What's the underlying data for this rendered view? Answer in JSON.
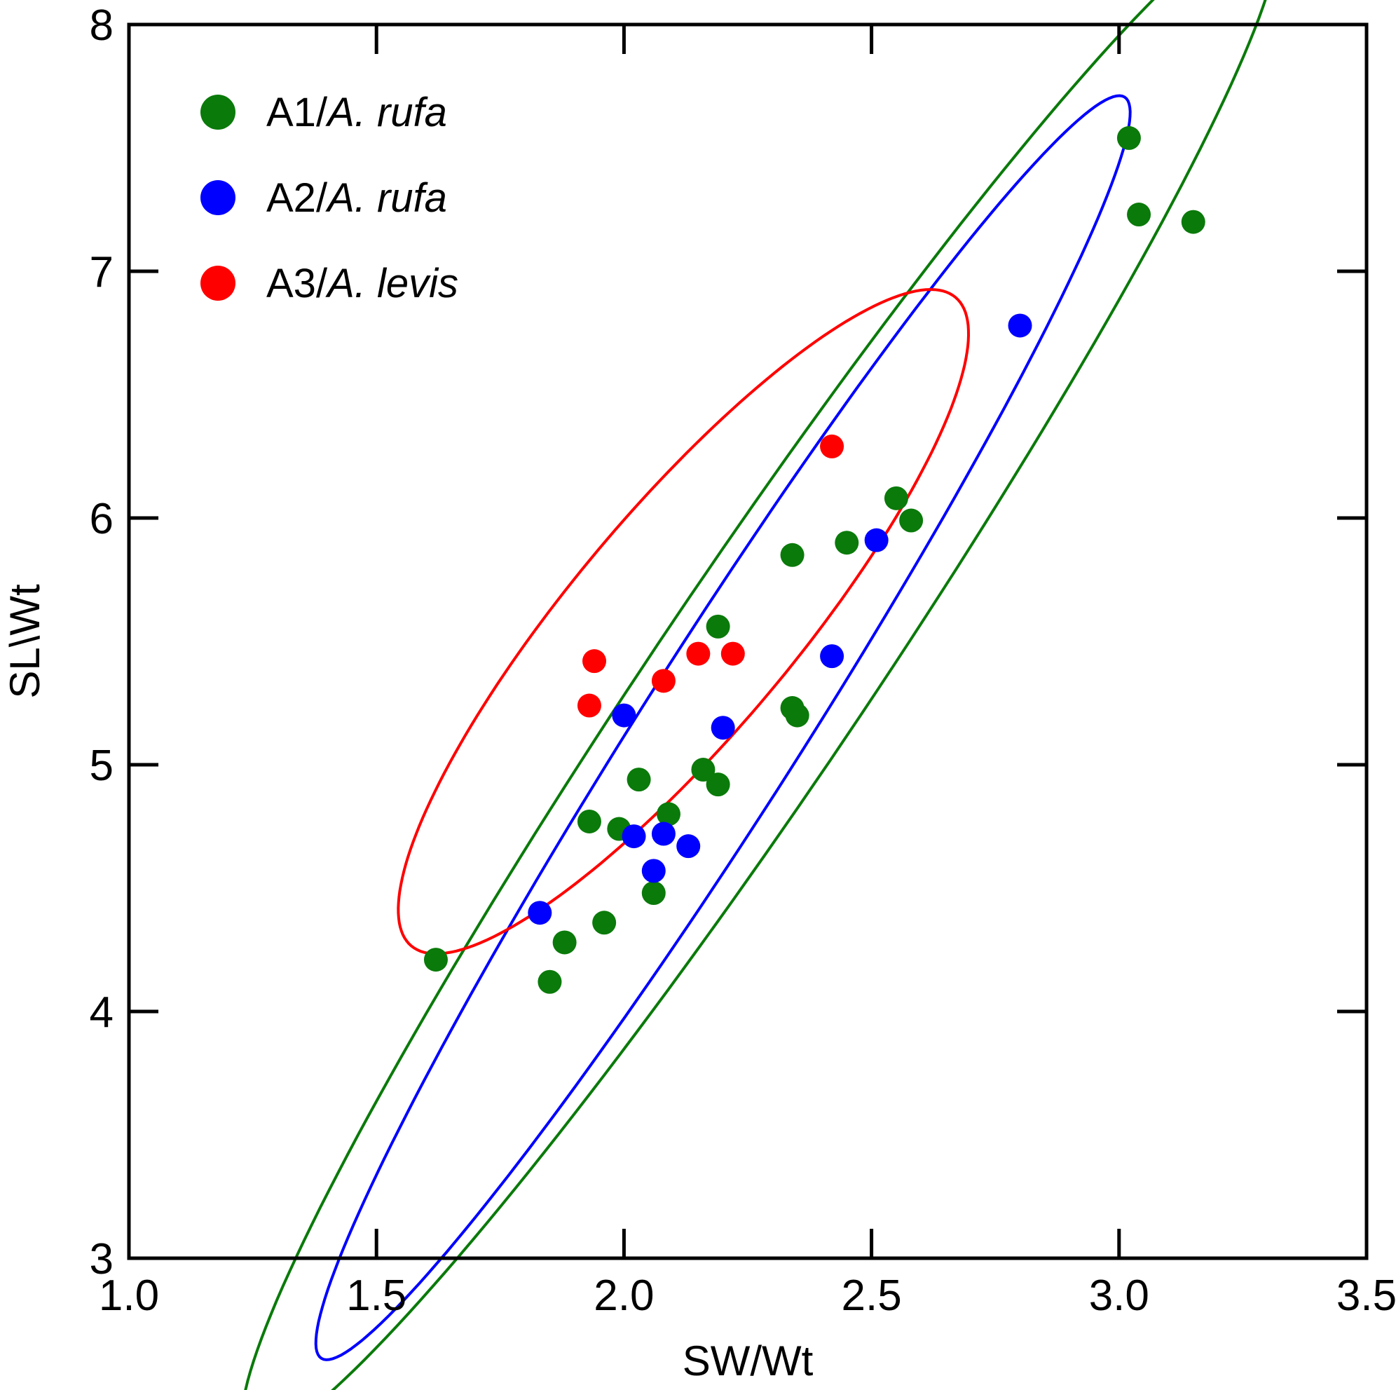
{
  "chart_data": {
    "type": "scatter",
    "xlabel": "SW/Wt",
    "ylabel": "SL\\Wt",
    "xlim": [
      1.0,
      3.5
    ],
    "ylim": [
      3,
      8
    ],
    "x_ticks": [
      1.0,
      1.5,
      2.0,
      2.5,
      3.0,
      3.5
    ],
    "x_tick_labels": [
      "1.0",
      "1.5",
      "2.0",
      "2.5",
      "3.0",
      "3.5"
    ],
    "y_ticks": [
      3,
      4,
      5,
      6,
      7,
      8
    ],
    "y_tick_labels": [
      "3",
      "4",
      "5",
      "6",
      "7",
      "8"
    ],
    "grid": false,
    "legend_position": "top-left",
    "series": [
      {
        "group": "A1/",
        "species": "A. rufa",
        "color": "#0a7a0a",
        "points": [
          [
            1.62,
            4.21
          ],
          [
            1.85,
            4.12
          ],
          [
            1.88,
            4.28
          ],
          [
            1.96,
            4.36
          ],
          [
            2.06,
            4.48
          ],
          [
            1.93,
            4.77
          ],
          [
            1.99,
            4.74
          ],
          [
            2.09,
            4.8
          ],
          [
            2.03,
            4.94
          ],
          [
            2.16,
            4.98
          ],
          [
            2.19,
            4.92
          ],
          [
            2.34,
            5.23
          ],
          [
            2.35,
            5.2
          ],
          [
            2.19,
            5.56
          ],
          [
            2.34,
            5.85
          ],
          [
            2.45,
            5.9
          ],
          [
            2.55,
            6.08
          ],
          [
            2.58,
            5.99
          ],
          [
            3.02,
            7.54
          ],
          [
            3.04,
            7.23
          ],
          [
            3.15,
            7.2
          ]
        ],
        "ellipse": {
          "center": [
            2.275,
            5.35
          ],
          "semi_major": 1.845,
          "semi_minor": 0.21,
          "angle_deg": 56
        }
      },
      {
        "group": "A2/",
        "species": "A. rufa",
        "color": "#0000ff",
        "points": [
          [
            1.83,
            4.4
          ],
          [
            2.0,
            5.2
          ],
          [
            2.02,
            4.71
          ],
          [
            2.06,
            4.57
          ],
          [
            2.08,
            4.72
          ],
          [
            2.13,
            4.67
          ],
          [
            2.2,
            5.15
          ],
          [
            2.42,
            5.44
          ],
          [
            2.51,
            5.91
          ],
          [
            2.8,
            6.78
          ]
        ],
        "ellipse": {
          "center": [
            2.2,
            5.15
          ],
          "semi_major": 1.51,
          "semi_minor": 0.16,
          "angle_deg": 57.5
        }
      },
      {
        "group": "A3/",
        "species": "A. levis",
        "color": "#ff0000",
        "points": [
          [
            1.93,
            5.24
          ],
          [
            1.94,
            5.42
          ],
          [
            2.08,
            5.34
          ],
          [
            2.15,
            5.45
          ],
          [
            2.22,
            5.45
          ],
          [
            2.42,
            6.29
          ]
        ],
        "ellipse": {
          "center": [
            2.12,
            5.58
          ],
          "semi_major": 0.855,
          "semi_minor": 0.225,
          "angle_deg": 50
        }
      }
    ]
  }
}
